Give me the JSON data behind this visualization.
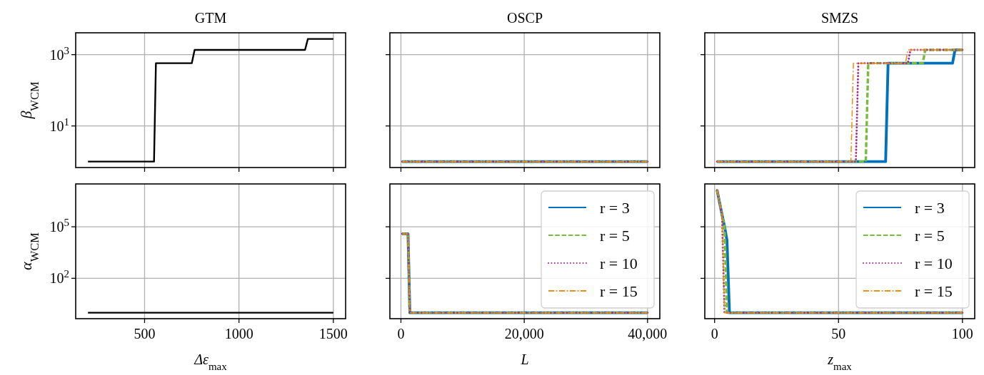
{
  "chart_data": [
    {
      "type": "line",
      "title": "GTM",
      "ylabel": "β$_{WCM}$",
      "log": "y",
      "grid": true,
      "tick_labels": "y",
      "xlim": [
        135,
        1565
      ],
      "ylim": [
        0.68,
        4100
      ],
      "xticks": [
        {
          "value": 500,
          "label": null
        },
        {
          "value": 1000,
          "label": null
        },
        {
          "value": 1500,
          "label": null
        }
      ],
      "yticks": [
        {
          "value": 10,
          "label": "10$^{1}$"
        },
        {
          "value": 1000,
          "label": "10$^{3}$"
        }
      ],
      "series": [
        {
          "color": "#000000",
          "line_style": "solid",
          "x": [
            200,
            550,
            560,
            750,
            765,
            1350,
            1365,
            1500
          ],
          "values": [
            1,
            1,
            575,
            575,
            1360,
            1360,
            2750,
            2750
          ]
        }
      ]
    },
    {
      "type": "line",
      "title": "OSCP",
      "log": "y",
      "grid": true,
      "tick_labels": false,
      "xlim": [
        -1790,
        41990
      ],
      "ylim": [
        0.68,
        4100
      ],
      "xticks": [
        {
          "value": 0,
          "label": null
        },
        {
          "value": 20000,
          "label": null
        },
        {
          "value": 40000,
          "label": null
        }
      ],
      "yticks": [
        {
          "value": 10,
          "label": null
        },
        {
          "value": 1000,
          "label": null
        }
      ],
      "series": [
        {
          "color": "#0072bd",
          "line_style": "solid",
          "x": [
            200,
            40000
          ],
          "values": [
            1,
            1
          ]
        },
        {
          "color": "#77bd3a",
          "line_style": "dashed",
          "x": [
            200,
            40000
          ],
          "values": [
            1,
            1
          ]
        },
        {
          "color": "#a2328f",
          "line_style": "dotted",
          "x": [
            200,
            40000
          ],
          "values": [
            1,
            1
          ]
        },
        {
          "color": "#f28c14",
          "line_style": "dashdot",
          "x": [
            200,
            40000
          ],
          "values": [
            1,
            1
          ]
        }
      ]
    },
    {
      "type": "line",
      "title": "SMZS",
      "log": "y",
      "grid": true,
      "tick_labels": false,
      "xlim": [
        -3.95,
        104.95
      ],
      "ylim": [
        0.68,
        4100
      ],
      "xticks": [
        {
          "value": 0,
          "label": null
        },
        {
          "value": 50,
          "label": null
        },
        {
          "value": 100,
          "label": null
        }
      ],
      "yticks": [
        {
          "value": 10,
          "label": null
        },
        {
          "value": 1000,
          "label": null
        }
      ],
      "series": [
        {
          "color": "#0072bd",
          "line_style": "solid",
          "x": [
            1,
            69,
            70,
            96,
            97,
            100
          ],
          "values": [
            1,
            1,
            575,
            575,
            1360,
            1360
          ]
        },
        {
          "color": "#77bd3a",
          "line_style": "dashed",
          "x": [
            1,
            61,
            62,
            84,
            85,
            100
          ],
          "values": [
            1,
            1,
            575,
            575,
            1360,
            1360
          ]
        },
        {
          "color": "#a2328f",
          "line_style": "dotted",
          "x": [
            1,
            57,
            58,
            78,
            79,
            100
          ],
          "values": [
            1,
            1,
            575,
            575,
            1360,
            1360
          ]
        },
        {
          "color": "#f28c14",
          "line_style": "dashdot",
          "x": [
            1,
            55,
            56,
            77,
            78,
            100
          ],
          "values": [
            1,
            1,
            575,
            575,
            1360,
            1360
          ]
        }
      ]
    },
    {
      "type": "line",
      "xlabel": "Δε$_{max}$",
      "ylabel": "α$_{WCM}$",
      "log": "y",
      "grid": true,
      "xlim": [
        135,
        1565
      ],
      "ylim": [
        0.45,
        31000000
      ],
      "xticks": [
        500,
        1000,
        1500
      ],
      "yticks": [
        {
          "value": 100,
          "label": "10$^{2}$"
        },
        {
          "value": 100000,
          "label": "10$^{5}$"
        }
      ],
      "series": [
        {
          "color": "#000000",
          "line_style": "solid",
          "x": [
            200,
            1500
          ],
          "values": [
            1,
            1
          ]
        }
      ]
    },
    {
      "type": "line",
      "xlabel": "L",
      "log": "y",
      "grid": true,
      "tick_labels": "x",
      "legend": "top right",
      "xlim": [
        -1790,
        41990
      ],
      "ylim": [
        0.45,
        31000000
      ],
      "xticks": [
        0,
        {
          "value": 20000,
          "label": "20,000"
        },
        {
          "value": 40000,
          "label": "40,000"
        }
      ],
      "yticks": [
        {
          "value": 100,
          "label": null
        },
        {
          "value": 100000,
          "label": null
        }
      ],
      "series": [
        {
          "name": "r = 3",
          "color": "#0072bd",
          "line_style": "solid",
          "x": [
            200,
            1150,
            1450,
            40000
          ],
          "values": [
            39000,
            39000,
            1,
            1
          ]
        },
        {
          "name": "r = 5",
          "color": "#77bd3a",
          "line_style": "dashed",
          "x": [
            200,
            1150,
            1450,
            40000
          ],
          "values": [
            39000,
            39000,
            1,
            1
          ]
        },
        {
          "name": "r = 10",
          "color": "#a2328f",
          "line_style": "dotted",
          "x": [
            200,
            1150,
            1450,
            40000
          ],
          "values": [
            39000,
            39000,
            1,
            1
          ]
        },
        {
          "name": "r = 15",
          "color": "#f28c14",
          "line_style": "dashdot",
          "x": [
            200,
            1150,
            1450,
            40000
          ],
          "values": [
            39000,
            39000,
            1,
            1
          ]
        }
      ]
    },
    {
      "type": "line",
      "xlabel": "z$_{max}$",
      "log": "y",
      "grid": true,
      "tick_labels": "x",
      "legend": "top right",
      "xlim": [
        -3.95,
        104.95
      ],
      "ylim": [
        0.45,
        31000000
      ],
      "xticks": [
        0,
        50,
        100
      ],
      "yticks": [
        {
          "value": 100,
          "label": null
        },
        {
          "value": 100000,
          "label": null
        }
      ],
      "series": [
        {
          "name": "r = 3",
          "color": "#0072bd",
          "line_style": "solid",
          "x": [
            1,
            2,
            3,
            4,
            5,
            6,
            100
          ],
          "values": [
            13500000,
            2600000,
            500000,
            110000,
            16000,
            1,
            1
          ]
        },
        {
          "name": "r = 5",
          "color": "#77bd3a",
          "line_style": "dashed",
          "x": [
            1,
            2,
            3,
            4,
            5,
            100
          ],
          "values": [
            13500000,
            2600000,
            500000,
            100000,
            1,
            1
          ]
        },
        {
          "name": "r = 10",
          "color": "#a2328f",
          "line_style": "dotted",
          "x": [
            1,
            2,
            3,
            4,
            100
          ],
          "values": [
            13500000,
            2600000,
            500000,
            1,
            1
          ]
        },
        {
          "name": "r = 15",
          "color": "#f28c14",
          "line_style": "dashdot",
          "x": [
            1,
            2,
            3,
            4,
            100
          ],
          "values": [
            13500000,
            2600000,
            500000,
            1,
            1
          ]
        }
      ]
    }
  ]
}
